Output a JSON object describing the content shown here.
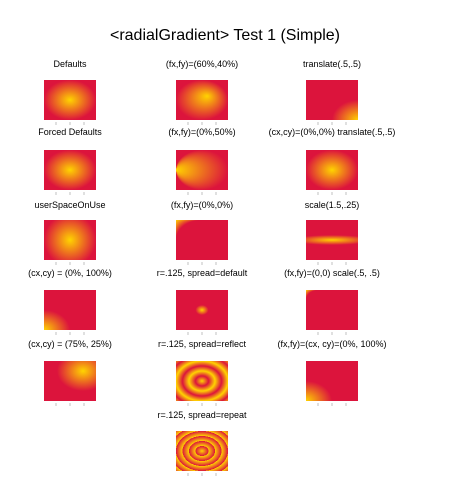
{
  "title": "<radialGradient> Test 1 (Simple)",
  "cells": [
    {
      "label": "Defaults"
    },
    {
      "label": "(fx,fy)=(60%,40%)"
    },
    {
      "label": "translate(.5,.5)"
    },
    {
      "label": "Forced Defaults"
    },
    {
      "label": "(fx,fy)=(0%,50%)"
    },
    {
      "label": "(cx,cy)=(0%,0%) translate(.5,.5)"
    },
    {
      "label": "userSpaceOnUse"
    },
    {
      "label": "(fx,fy)=(0%,0%)"
    },
    {
      "label": "scale(1.5,.25)"
    },
    {
      "label": "(cx,cy) = (0%, 100%)"
    },
    {
      "label": "r=.125, spread=default"
    },
    {
      "label": "(fx,fy)=(0,0) scale(.5, .5)"
    },
    {
      "label": "(cx,cy) = (75%, 25%)"
    },
    {
      "label": "r=.125, spread=reflect"
    },
    {
      "label": "(fx,fy)=(cx, cy)=(0%, 100%)"
    },
    {
      "label": "r=.125, spread=repeat"
    }
  ]
}
